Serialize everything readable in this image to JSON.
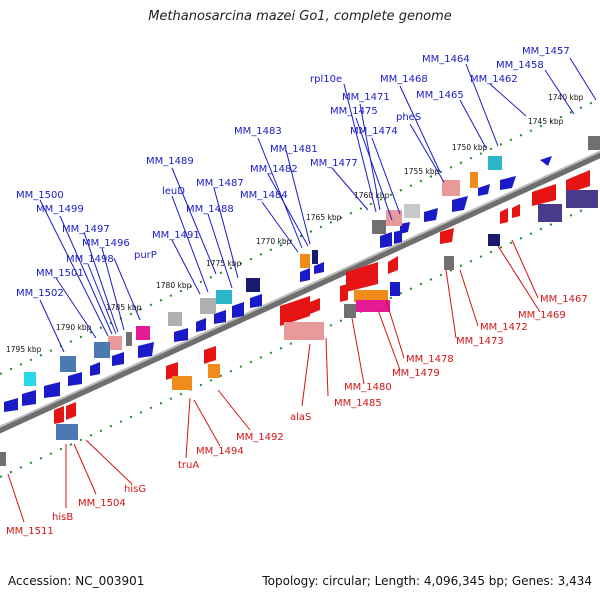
{
  "title": "Methanosarcina mazei Go1, complete genome",
  "footer": {
    "accession": "Accession: NC_003901",
    "info": "Topology: circular; Length: 4,096,345 bp; Genes: 3,434"
  },
  "colors": {
    "forward": "#1a1ac8",
    "reverse": "#d41414",
    "backbone": "#8c8c8c",
    "tick": "#1f8a1f"
  },
  "scale_labels": [
    "1740 kbp",
    "1745 kbp",
    "1750 kbp",
    "1755 kbp",
    "1760 kbp",
    "1765 kbp",
    "1770 kbp",
    "1775 kbp",
    "1780 kbp",
    "1785 kbp",
    "1790 kbp",
    "1795 kbp"
  ],
  "forward_genes": [
    "MM_1457",
    "MM_1458",
    "MM_1462",
    "MM_1464",
    "MM_1465",
    "MM_1468",
    "rpl10e",
    "MM_1471",
    "MM_1475",
    "MM_1474",
    "pheS",
    "MM_1477",
    "MM_1481",
    "MM_1483",
    "MM_1482",
    "MM_1484",
    "MM_1489",
    "MM_1487",
    "MM_1488",
    "leuD",
    "MM_1491",
    "purP",
    "MM_1500",
    "MM_1499",
    "MM_1497",
    "MM_1496",
    "MM_1498",
    "MM_1501",
    "MM_1502"
  ],
  "reverse_genes": [
    "MM_1467",
    "MM_1469",
    "MM_1472",
    "MM_1473",
    "MM_1478",
    "MM_1479",
    "MM_1480",
    "MM_1485",
    "alaS",
    "MM_1492",
    "MM_1494",
    "truA",
    "hisG",
    "MM_1504",
    "hisB",
    "MM_1511"
  ]
}
